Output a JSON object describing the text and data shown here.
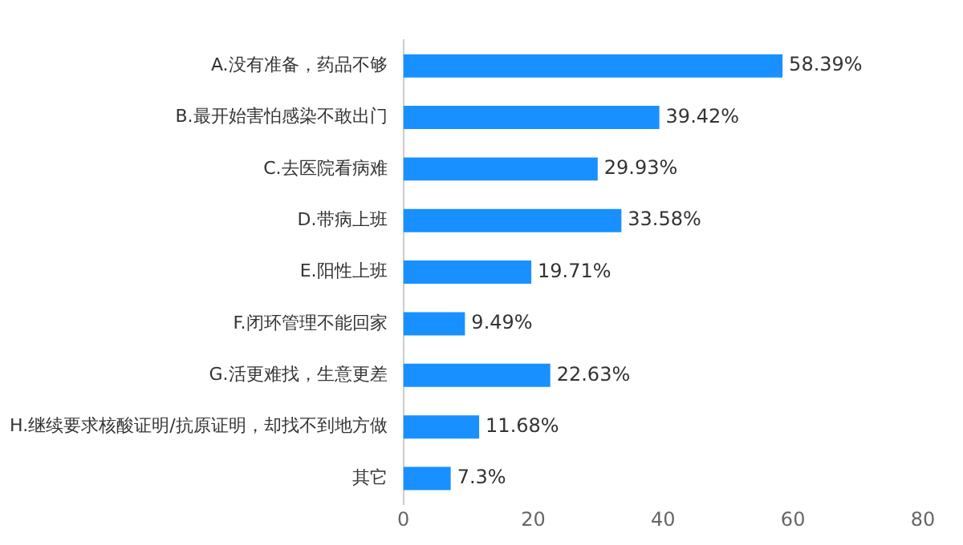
{
  "chart_data": {
    "type": "bar",
    "orientation": "horizontal",
    "categories": [
      "A.没有准备，药品不够",
      "B.最开始害怕感染不敢出门",
      "C.去医院看病难",
      "D.带病上班",
      "E.阳性上班",
      "F.闭环管理不能回家",
      "G.活更难找，生意更差",
      "H.继续要求核酸证明/抗原证明，却找不到地方做",
      "其它"
    ],
    "values": [
      58.39,
      39.42,
      29.93,
      33.58,
      19.71,
      9.49,
      22.63,
      11.68,
      7.3
    ],
    "value_labels": [
      "58.39%",
      "39.42%",
      "29.93%",
      "33.58%",
      "19.71%",
      "9.49%",
      "22.63%",
      "11.68%",
      "7.3%"
    ],
    "color": "#1890ff",
    "xlim": [
      0,
      80
    ],
    "xticks": [
      0,
      20,
      40,
      60,
      80
    ],
    "grid": false,
    "legend": false
  }
}
